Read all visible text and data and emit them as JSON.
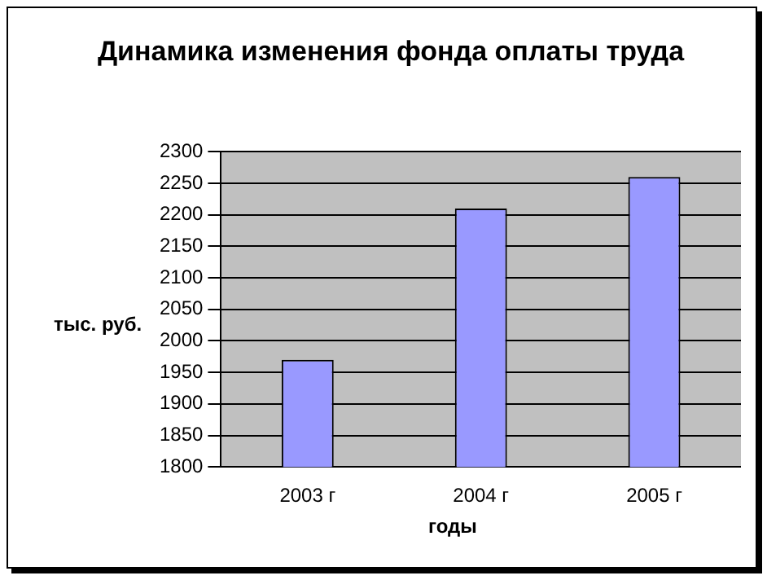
{
  "chart_data": {
    "type": "bar",
    "title": "Динамика изменения фонда оплаты труда",
    "xlabel": "годы",
    "ylabel": "тыс. руб.",
    "categories": [
      "2003 г",
      "2004 г",
      "2005 г"
    ],
    "values": [
      1970,
      2210,
      2260
    ],
    "color": "#9999ff",
    "ylim": [
      1800,
      2300
    ],
    "yticks": [
      1800,
      1850,
      1900,
      1950,
      2000,
      2050,
      2100,
      2150,
      2200,
      2250,
      2300
    ],
    "grid": "y",
    "legend": false
  }
}
